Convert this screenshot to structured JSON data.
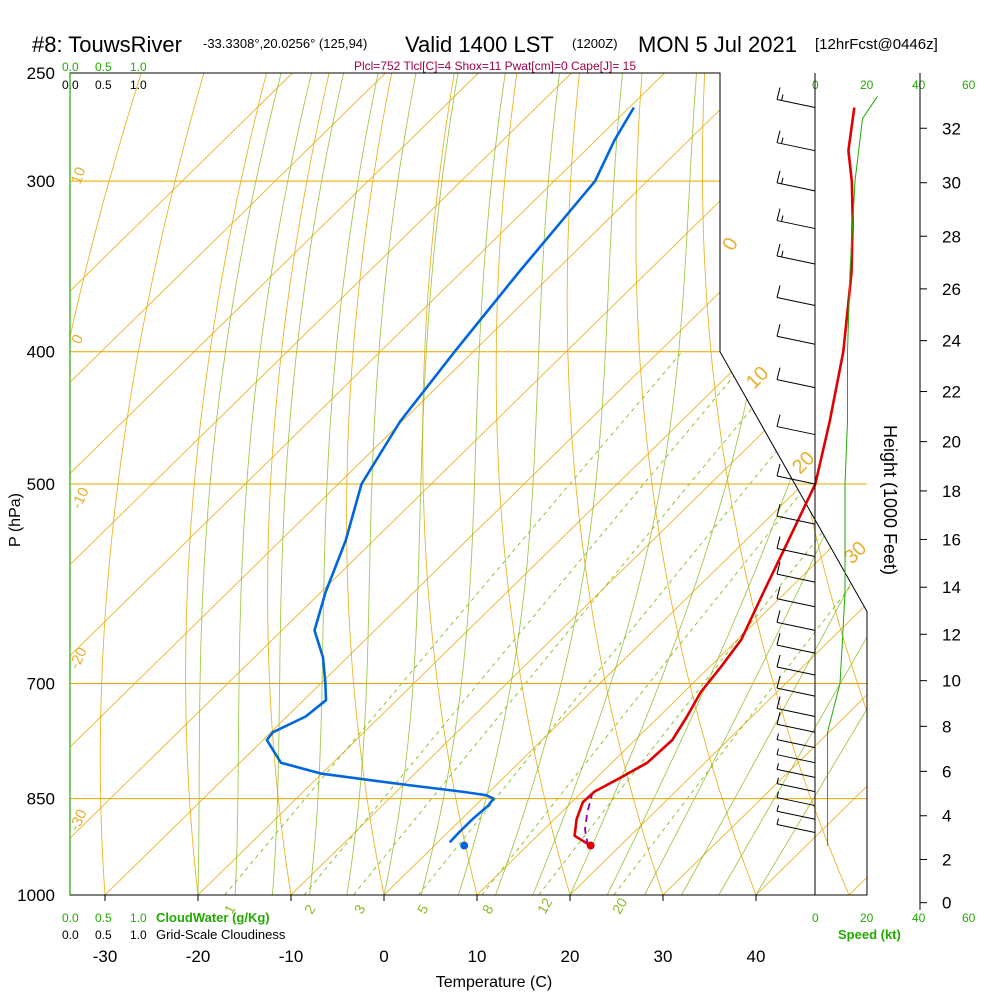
{
  "header": {
    "station": "#8: TouwsRiver",
    "coords": "-33.3308°,20.0256° (125,94)",
    "valid": "Valid 1400 LST",
    "zulu": "(1200Z)",
    "date": "MON 5 Jul 2021",
    "fcst": "[12hrFcst@0446z]",
    "indices": "Plcl=752 Tlcl[C]=4 Shox=11 Pwat[cm]=0 Cape[J]= 15"
  },
  "colors": {
    "temp": "#e00000",
    "dewpoint": "#0066dd",
    "parcel": "#8800aa",
    "isotherm": "#e8a800",
    "mixing": "#88bb22",
    "cloud": "#22aa00",
    "wind": "#000000"
  },
  "chart_data": {
    "type": "line",
    "title": "Skew-T log-P sounding",
    "xlabel": "Temperature (C)",
    "ylabel": "P (hPa)",
    "right_label": "Height (1000 Feet)",
    "x_ticks": [
      -30,
      -20,
      -10,
      0,
      10,
      20,
      30,
      40
    ],
    "xlim": [
      -34,
      52
    ],
    "p_ticks": [
      250,
      300,
      400,
      500,
      700,
      850,
      1000
    ],
    "plim": [
      1000,
      250
    ],
    "height_ticks": [
      0,
      2,
      4,
      6,
      8,
      10,
      12,
      14,
      16,
      18,
      20,
      22,
      24,
      26,
      28,
      30,
      32
    ],
    "dry_adiabat_labels": [
      "10",
      "0",
      "-10",
      "-20",
      "-30"
    ],
    "moist_adiabat_labels": [
      "0",
      "10",
      "20",
      "30"
    ],
    "mixing_ratio_labels": [
      "1",
      "2",
      "3",
      "5",
      "8",
      "12",
      "20"
    ],
    "cloud_scale_top": [
      "0.0",
      "0.5",
      "1.0"
    ],
    "cloud_scale_bottom": [
      "0.0",
      "0.5",
      "1.0"
    ],
    "cloud_water_label": "CloudWater (g/Kg)",
    "cloudiness_label": "Grid-Scale Cloudiness",
    "speed_ticks": [
      "0",
      "20",
      "40",
      "60"
    ],
    "speed_label": "Speed (kt)",
    "series": [
      {
        "name": "Temperature",
        "points": [
          {
            "p": 920,
            "t": 16.8
          },
          {
            "p": 905,
            "t": 14.0
          },
          {
            "p": 880,
            "t": 12.4
          },
          {
            "p": 855,
            "t": 11.2
          },
          {
            "p": 840,
            "t": 11.3
          },
          {
            "p": 820,
            "t": 12.6
          },
          {
            "p": 800,
            "t": 13.8
          },
          {
            "p": 770,
            "t": 14.0
          },
          {
            "p": 740,
            "t": 13.0
          },
          {
            "p": 710,
            "t": 11.8
          },
          {
            "p": 680,
            "t": 11.2
          },
          {
            "p": 650,
            "t": 10.4
          },
          {
            "p": 600,
            "t": 7.6
          },
          {
            "p": 550,
            "t": 4.6
          },
          {
            "p": 500,
            "t": 1.3
          },
          {
            "p": 450,
            "t": -4.0
          },
          {
            "p": 400,
            "t": -10.2
          },
          {
            "p": 350,
            "t": -18.0
          },
          {
            "p": 320,
            "t": -23.7
          },
          {
            "p": 300,
            "t": -28.0
          },
          {
            "p": 285,
            "t": -31.7
          },
          {
            "p": 265,
            "t": -35.8
          }
        ]
      },
      {
        "name": "Dewpoint",
        "points": [
          {
            "p": 915,
            "t": 1.3
          },
          {
            "p": 900,
            "t": 1.2
          },
          {
            "p": 880,
            "t": 1.2
          },
          {
            "p": 860,
            "t": 1.4
          },
          {
            "p": 850,
            "t": 1.2
          },
          {
            "p": 845,
            "t": 0.0
          },
          {
            "p": 840,
            "t": -3.0
          },
          {
            "p": 830,
            "t": -10.0
          },
          {
            "p": 815,
            "t": -20.0
          },
          {
            "p": 800,
            "t": -25.6
          },
          {
            "p": 770,
            "t": -29.6
          },
          {
            "p": 760,
            "t": -29.8
          },
          {
            "p": 740,
            "t": -28.0
          },
          {
            "p": 720,
            "t": -27.6
          },
          {
            "p": 700,
            "t": -29.5
          },
          {
            "p": 670,
            "t": -32.6
          },
          {
            "p": 640,
            "t": -36.5
          },
          {
            "p": 600,
            "t": -39.5
          },
          {
            "p": 550,
            "t": -43.0
          },
          {
            "p": 500,
            "t": -47.5
          },
          {
            "p": 450,
            "t": -50.2
          },
          {
            "p": 400,
            "t": -52.0
          },
          {
            "p": 350,
            "t": -53.8
          },
          {
            "p": 300,
            "t": -55.6
          },
          {
            "p": 280,
            "t": -58.0
          },
          {
            "p": 265,
            "t": -59.5
          }
        ]
      },
      {
        "name": "Parcel",
        "points": [
          {
            "p": 920,
            "t": 16.5
          },
          {
            "p": 895,
            "t": 14.4
          },
          {
            "p": 870,
            "t": 12.8
          },
          {
            "p": 845,
            "t": 11.4
          }
        ]
      }
    ],
    "surface_points": [
      {
        "name": "surface-temp",
        "p": 920,
        "t": 16.8
      },
      {
        "name": "surface-dewpoint",
        "p": 920,
        "t": 3.2
      }
    ],
    "wind_barbs": [
      {
        "p": 265,
        "spd": 15
      },
      {
        "p": 285,
        "spd": 15
      },
      {
        "p": 305,
        "spd": 15
      },
      {
        "p": 325,
        "spd": 15
      },
      {
        "p": 345,
        "spd": 15
      },
      {
        "p": 370,
        "spd": 10
      },
      {
        "p": 395,
        "spd": 10
      },
      {
        "p": 425,
        "spd": 10
      },
      {
        "p": 460,
        "spd": 10
      },
      {
        "p": 500,
        "spd": 10
      },
      {
        "p": 535,
        "spd": 10
      },
      {
        "p": 565,
        "spd": 10
      },
      {
        "p": 590,
        "spd": 10
      },
      {
        "p": 615,
        "spd": 10
      },
      {
        "p": 640,
        "spd": 10
      },
      {
        "p": 665,
        "spd": 10
      },
      {
        "p": 690,
        "spd": 10
      },
      {
        "p": 715,
        "spd": 10
      },
      {
        "p": 740,
        "spd": 10
      },
      {
        "p": 760,
        "spd": 10
      },
      {
        "p": 780,
        "spd": 5
      },
      {
        "p": 800,
        "spd": 5
      },
      {
        "p": 820,
        "spd": 5
      },
      {
        "p": 840,
        "spd": 5
      },
      {
        "p": 860,
        "spd": 5
      },
      {
        "p": 880,
        "spd": 5
      },
      {
        "p": 900,
        "spd": 5
      }
    ],
    "speed_profile": [
      {
        "p": 920,
        "spd": 5
      },
      {
        "p": 880,
        "spd": 5
      },
      {
        "p": 840,
        "spd": 5
      },
      {
        "p": 800,
        "spd": 5
      },
      {
        "p": 760,
        "spd": 5
      },
      {
        "p": 700,
        "spd": 10
      },
      {
        "p": 650,
        "spd": 11
      },
      {
        "p": 600,
        "spd": 12
      },
      {
        "p": 550,
        "spd": 12
      },
      {
        "p": 500,
        "spd": 12
      },
      {
        "p": 450,
        "spd": 13
      },
      {
        "p": 400,
        "spd": 13
      },
      {
        "p": 350,
        "spd": 14
      },
      {
        "p": 300,
        "spd": 16
      },
      {
        "p": 270,
        "spd": 19
      },
      {
        "p": 260,
        "spd": 25
      }
    ]
  }
}
